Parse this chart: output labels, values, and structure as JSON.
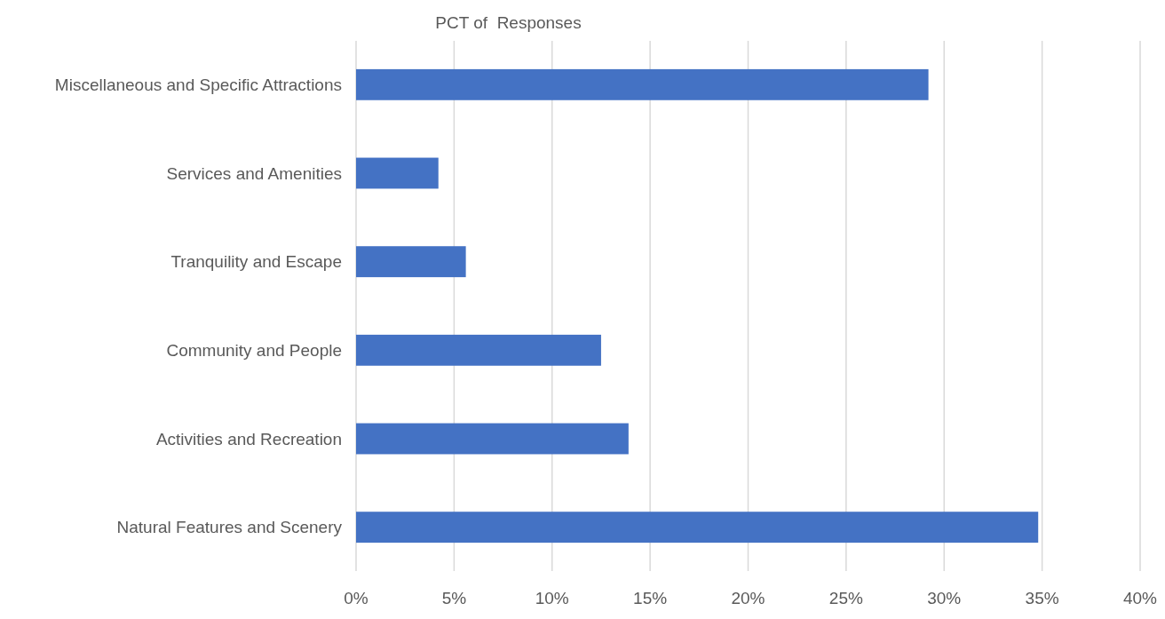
{
  "chart_data": {
    "type": "bar",
    "orientation": "horizontal",
    "title": "PCT of  Responses",
    "categories": [
      "Miscellaneous and Specific Attractions",
      "Services and Amenities",
      "Tranquility and Escape",
      "Community and People",
      "Activities and Recreation",
      "Natural Features and Scenery"
    ],
    "values": [
      29.2,
      4.2,
      5.6,
      12.5,
      13.9,
      34.8
    ],
    "color": "#4472c4",
    "xlim": [
      0,
      40
    ],
    "xticks": [
      {
        "value": 0,
        "label": "0%"
      },
      {
        "value": 5,
        "label": "5%"
      },
      {
        "value": 10,
        "label": "10%"
      },
      {
        "value": 15,
        "label": "15%"
      },
      {
        "value": 20,
        "label": "20%"
      },
      {
        "value": 25,
        "label": "25%"
      },
      {
        "value": 30,
        "label": "30%"
      },
      {
        "value": 35,
        "label": "35%"
      },
      {
        "value": 40,
        "label": "40%"
      }
    ],
    "grid": "x"
  }
}
